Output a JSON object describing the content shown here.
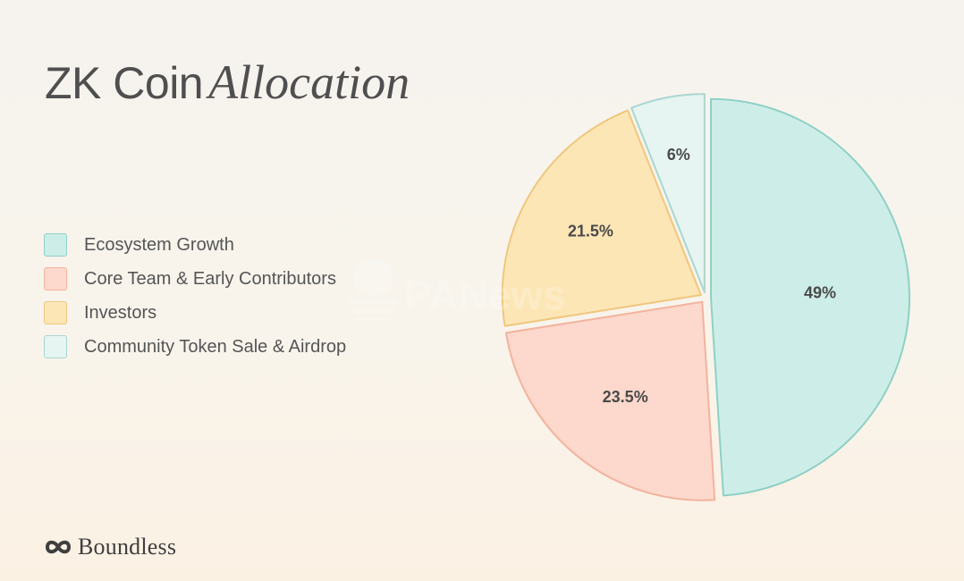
{
  "title": {
    "plain": "ZK Coin",
    "italic": "Allocation"
  },
  "legend": [
    {
      "label": "Ecosystem Growth",
      "fill": "#cdeee8",
      "stroke": "#8fd0c6"
    },
    {
      "label": "Core Team & Early Contributors",
      "fill": "#fdd8cc",
      "stroke": "#f2b39d"
    },
    {
      "label": "Investors",
      "fill": "#fde6b6",
      "stroke": "#efc77e"
    },
    {
      "label": "Community Token Sale & Airdrop",
      "fill": "#e6f4f2",
      "stroke": "#a9d7d0"
    }
  ],
  "chart_data": {
    "type": "pie",
    "categories": [
      "Ecosystem Growth",
      "Core Team & Early Contributors",
      "Investors",
      "Community Token Sale & Airdrop"
    ],
    "values": [
      49,
      23.5,
      21.5,
      6
    ],
    "labels": [
      "49%",
      "23.5%",
      "21.5%",
      "6%"
    ],
    "colors": [
      "#cdeee8",
      "#fdd8cc",
      "#fde6b6",
      "#e6f4f2"
    ],
    "stroke_colors": [
      "#8fd0c6",
      "#f2b39d",
      "#efc77e",
      "#a9d7d0"
    ],
    "start": "top",
    "direction": "clockwise",
    "exploded": true
  },
  "brand": {
    "name": "Boundless",
    "icon": "boundless-logo-icon"
  },
  "watermark": "PANews"
}
